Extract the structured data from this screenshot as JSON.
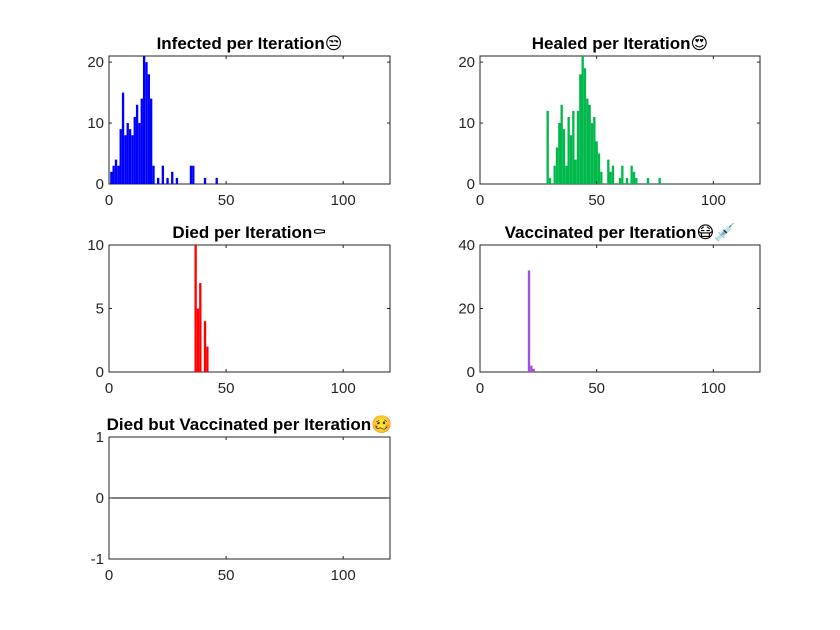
{
  "chart_data": [
    {
      "type": "bar",
      "title": "Infected per Iteration",
      "title_emoji": "😒",
      "xlim": [
        0,
        120
      ],
      "ylim": [
        0,
        21
      ],
      "xticks": [
        0,
        50,
        100
      ],
      "yticks": [
        0,
        10,
        20
      ],
      "color": "#0000FF",
      "bar_width": 1,
      "x": [
        1,
        2,
        3,
        4,
        5,
        6,
        7,
        8,
        9,
        10,
        11,
        12,
        13,
        14,
        15,
        16,
        17,
        18,
        19,
        21,
        23,
        25,
        27,
        29,
        35,
        36,
        41,
        46
      ],
      "values": [
        2,
        3,
        4,
        3,
        9,
        15,
        8,
        10,
        9,
        8,
        11,
        13,
        10,
        14,
        21,
        20,
        18,
        14,
        3,
        1,
        3,
        1,
        2,
        1,
        3,
        3,
        1,
        1
      ]
    },
    {
      "type": "bar",
      "title": "Healed per Iteration",
      "title_emoji": "😍",
      "xlim": [
        0,
        120
      ],
      "ylim": [
        0,
        21
      ],
      "xticks": [
        0,
        50,
        100
      ],
      "yticks": [
        0,
        10,
        20
      ],
      "color": "#00B94A",
      "bar_width": 1,
      "x": [
        29,
        30,
        32,
        33,
        34,
        35,
        36,
        37,
        38,
        39,
        40,
        41,
        42,
        43,
        44,
        45,
        46,
        47,
        48,
        49,
        50,
        51,
        52,
        55,
        56,
        57,
        60,
        61,
        63,
        65,
        66,
        67,
        72,
        77
      ],
      "values": [
        12,
        1,
        3,
        6,
        10,
        13,
        9,
        3,
        11,
        8,
        12,
        4,
        12,
        18,
        21,
        19,
        14,
        13,
        10,
        11,
        7,
        5,
        2,
        4,
        2,
        3,
        1,
        3,
        1,
        3,
        2,
        1,
        1,
        1
      ]
    },
    {
      "type": "bar",
      "title": "Died per Iteration",
      "title_emoji": "⚰",
      "xlim": [
        0,
        120
      ],
      "ylim": [
        0,
        10
      ],
      "xticks": [
        0,
        50,
        100
      ],
      "yticks": [
        0,
        5,
        10
      ],
      "color": "#FF0000",
      "bar_width": 1,
      "x": [
        37,
        38,
        39,
        41,
        42
      ],
      "values": [
        10,
        5,
        7,
        4,
        2
      ]
    },
    {
      "type": "bar",
      "title": "Vaccinated per Iteration",
      "title_emoji": "😷💉",
      "xlim": [
        0,
        120
      ],
      "ylim": [
        0,
        40
      ],
      "xticks": [
        0,
        50,
        100
      ],
      "yticks": [
        0,
        20,
        40
      ],
      "color": "#A050DC",
      "bar_width": 1,
      "x": [
        21,
        22,
        23
      ],
      "values": [
        32,
        2,
        1
      ]
    },
    {
      "type": "bar",
      "title": "Died but Vaccinated per Iteration",
      "title_emoji": "🥴",
      "xlim": [
        0,
        120
      ],
      "ylim": [
        -1,
        1
      ],
      "xticks": [
        0,
        50,
        100
      ],
      "yticks": [
        -1,
        0,
        1
      ],
      "color": "#000000",
      "bar_width": 1,
      "x": [],
      "values": [],
      "zero_line": true
    }
  ]
}
